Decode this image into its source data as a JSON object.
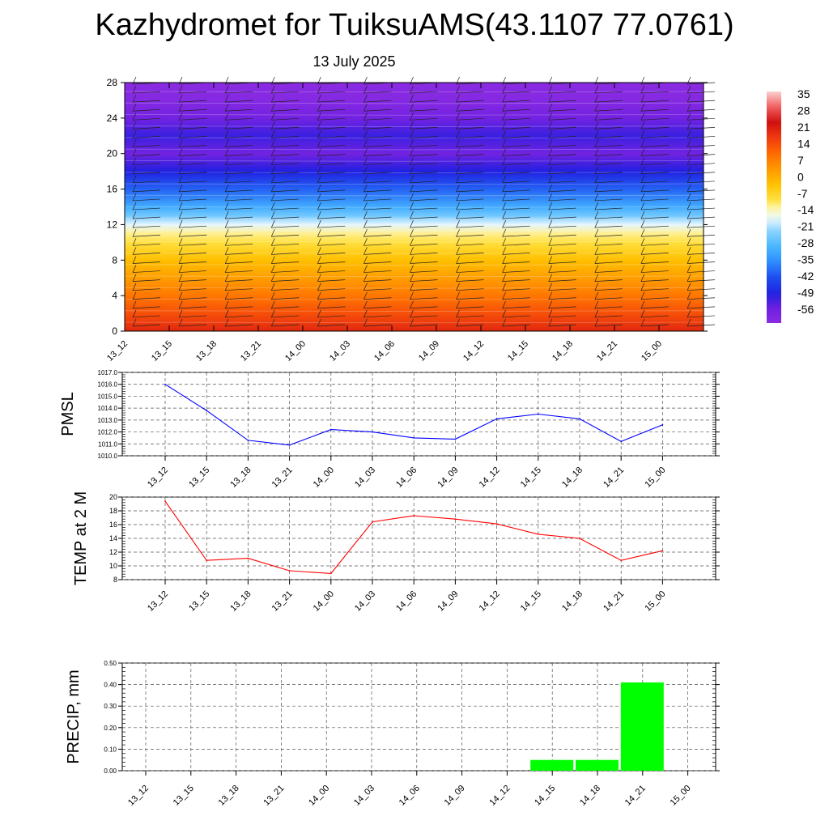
{
  "header": {
    "title": "Kazhydromet for TuiksuAMS(43.1107 77.0761)",
    "date": "13 July 2025"
  },
  "time_labels": [
    "13_12",
    "13_15",
    "13_18",
    "13_21",
    "14_00",
    "14_03",
    "14_06",
    "14_09",
    "14_12",
    "14_15",
    "14_18",
    "14_21",
    "15_00"
  ],
  "chart_data": [
    {
      "type": "heatmap",
      "title": "",
      "xlabel": "",
      "ylabel": "",
      "x": [
        "13_12",
        "13_15",
        "13_18",
        "13_21",
        "14_00",
        "14_03",
        "14_06",
        "14_09",
        "14_12",
        "14_15",
        "14_18",
        "14_21",
        "15_00"
      ],
      "ylim": [
        0,
        28
      ],
      "yticks": [
        0,
        4,
        8,
        12,
        16,
        20,
        24,
        28
      ],
      "levels": [
        {
          "y": 0,
          "value": 24
        },
        {
          "y": 2,
          "value": 18
        },
        {
          "y": 4,
          "value": 12
        },
        {
          "y": 6,
          "value": 6
        },
        {
          "y": 8,
          "value": 0
        },
        {
          "y": 10,
          "value": -7
        },
        {
          "y": 11,
          "value": -10
        },
        {
          "y": 12,
          "value": -16
        },
        {
          "y": 13,
          "value": -24
        },
        {
          "y": 14,
          "value": -30
        },
        {
          "y": 16,
          "value": -40
        },
        {
          "y": 18,
          "value": -50
        },
        {
          "y": 20,
          "value": -58
        },
        {
          "y": 22,
          "value": -52
        },
        {
          "y": 24,
          "value": -58
        },
        {
          "y": 26,
          "value": -62
        },
        {
          "y": 28,
          "value": -63
        }
      ],
      "colorbar": {
        "labels": [
          "35",
          "28",
          "21",
          "14",
          "7",
          "0",
          "-7",
          "-14",
          "-21",
          "-28",
          "-35",
          "-42",
          "-49",
          "-56"
        ],
        "range": [
          -63,
          42
        ]
      },
      "overlay": "wind barbs"
    },
    {
      "type": "line",
      "title": "",
      "xlabel": "",
      "ylabel": "PMSL",
      "x": [
        "13_12",
        "13_15",
        "13_18",
        "13_21",
        "14_00",
        "14_03",
        "14_06",
        "14_09",
        "14_12",
        "14_15",
        "14_18",
        "14_21",
        "15_00"
      ],
      "ylim": [
        1010.0,
        1017.0
      ],
      "yticks": [
        "1010.0",
        "1011.0",
        "1012.0",
        "1013.0",
        "1014.0",
        "1015.0",
        "1016.0",
        "1017.0"
      ],
      "grid": true,
      "series": [
        {
          "values": [
            1016.0,
            1013.8,
            1011.3,
            1010.9,
            1012.2,
            1012.0,
            1011.5,
            1011.4,
            1013.1,
            1013.5,
            1013.1,
            1011.2,
            1012.6
          ],
          "color": "#0000ff"
        }
      ]
    },
    {
      "type": "line",
      "title": "",
      "xlabel": "",
      "ylabel": "TEMP at 2 M",
      "x": [
        "13_12",
        "13_15",
        "13_18",
        "13_21",
        "14_00",
        "14_03",
        "14_06",
        "14_09",
        "14_12",
        "14_15",
        "14_18",
        "14_21",
        "15_00"
      ],
      "ylim": [
        8,
        20
      ],
      "yticks": [
        "8",
        "10",
        "12",
        "14",
        "16",
        "18",
        "20"
      ],
      "grid": true,
      "series": [
        {
          "values": [
            19.4,
            10.8,
            11.1,
            9.3,
            8.9,
            16.4,
            17.3,
            16.8,
            16.1,
            14.6,
            14.0,
            10.8,
            12.2
          ],
          "color": "#ff0000"
        }
      ]
    },
    {
      "type": "bar",
      "title": "",
      "xlabel": "",
      "ylabel": "PRECIP, mm",
      "categories": [
        "13_12",
        "13_15",
        "13_18",
        "13_21",
        "14_00",
        "14_03",
        "14_06",
        "14_09",
        "14_12",
        "14_15",
        "14_18",
        "14_21",
        "15_00"
      ],
      "ylim": [
        0.0,
        0.5
      ],
      "yticks": [
        "0.00",
        "0.10",
        "0.20",
        "0.30",
        "0.40",
        "0.50"
      ],
      "grid": true,
      "values": [
        0,
        0,
        0,
        0,
        0,
        0,
        0,
        0,
        0,
        0.05,
        0.05,
        0.41,
        0
      ],
      "color": "#00ff00"
    }
  ]
}
